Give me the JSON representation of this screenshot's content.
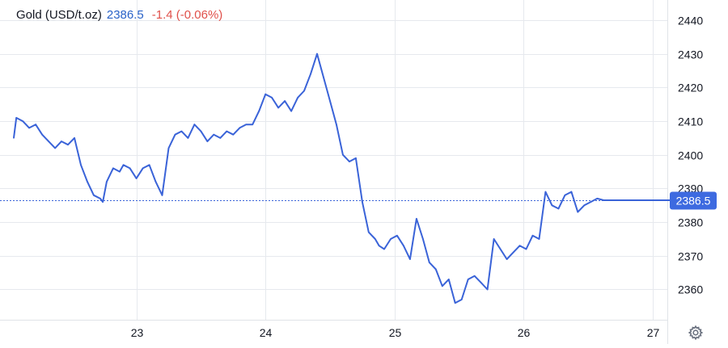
{
  "header": {
    "symbol": "Gold (USD/t.oz)",
    "last_price": "2386.5",
    "change": "-1.4 (-0.06%)"
  },
  "colors": {
    "line": "#3a63d8",
    "price_tag": "#3d6ae0",
    "grid": "#e6e9ee",
    "change_negative": "#e0504a"
  },
  "icons": {
    "settings": "gear-icon"
  },
  "chart_data": {
    "type": "line",
    "title": "",
    "xlabel": "",
    "ylabel": "",
    "x_tick_labels": [
      "23",
      "24",
      "25",
      "26",
      "27"
    ],
    "x_tick_values": [
      23,
      24,
      25,
      26,
      27
    ],
    "y_ticks": [
      2360,
      2370,
      2380,
      2390,
      2400,
      2410,
      2420,
      2430,
      2440
    ],
    "xlim": [
      22.05,
      27.22
    ],
    "ylim": [
      2351,
      2446
    ],
    "grid": true,
    "current_price": 2386.5,
    "current_price_label": "2386.5",
    "series": [
      {
        "name": "",
        "x": [
          22.05,
          22.07,
          22.12,
          22.17,
          22.22,
          22.27,
          22.32,
          22.37,
          22.42,
          22.47,
          22.52,
          22.57,
          22.62,
          22.67,
          22.72,
          22.74,
          22.77,
          22.82,
          22.87,
          22.9,
          22.95,
          23.0,
          23.05,
          23.1,
          23.15,
          23.2,
          23.25,
          23.3,
          23.35,
          23.4,
          23.45,
          23.5,
          23.55,
          23.6,
          23.65,
          23.7,
          23.75,
          23.8,
          23.85,
          23.9,
          23.95,
          24.0,
          24.05,
          24.1,
          24.15,
          24.2,
          24.25,
          24.3,
          24.35,
          24.4,
          24.45,
          24.5,
          24.55,
          24.6,
          24.65,
          24.7,
          24.75,
          24.8,
          24.85,
          24.88,
          24.92,
          24.97,
          25.02,
          25.07,
          25.12,
          25.17,
          25.22,
          25.27,
          25.32,
          25.37,
          25.42,
          25.47,
          25.52,
          25.57,
          25.62,
          25.67,
          25.72,
          25.77,
          25.82,
          25.87,
          25.92,
          25.97,
          26.02,
          26.07,
          26.12,
          26.17,
          26.22,
          26.27,
          26.32,
          26.37,
          26.42,
          26.47,
          26.52,
          26.57,
          26.62,
          26.67,
          26.72,
          26.77,
          26.82,
          26.87,
          26.9,
          26.95,
          27.0,
          27.05,
          27.1,
          27.15,
          27.18
        ],
        "values": [
          2405,
          2411,
          2410,
          2408,
          2409,
          2406,
          2404,
          2402,
          2404,
          2403,
          2405,
          2397,
          2392,
          2388,
          2387,
          2386,
          2392,
          2396,
          2395,
          2397,
          2396,
          2393,
          2396,
          2397,
          2392,
          2388,
          2402,
          2406,
          2407,
          2405,
          2409,
          2407,
          2404,
          2406,
          2405,
          2407,
          2406,
          2408,
          2409,
          2409,
          2413,
          2418,
          2417,
          2414,
          2416,
          2413,
          2417,
          2419,
          2424,
          2430,
          2423,
          2416,
          2409,
          2400,
          2398,
          2399,
          2386,
          2377,
          2375,
          2373,
          2372,
          2375,
          2376,
          2373,
          2369,
          2381,
          2375,
          2368,
          2366,
          2361,
          2363,
          2356,
          2357,
          2363,
          2364,
          2362,
          2360,
          2375,
          2372,
          2369,
          2371,
          2373,
          2372,
          2376,
          2375,
          2389,
          2385,
          2384,
          2388,
          2389,
          2383,
          2385,
          2386,
          2387,
          2386.5,
          2386.5,
          2386.5,
          2386.5,
          2386.5,
          2386.5,
          2386.5,
          2386.5,
          2386.5,
          2386.5,
          2386.5,
          2386.5,
          2386.5
        ]
      }
    ]
  }
}
